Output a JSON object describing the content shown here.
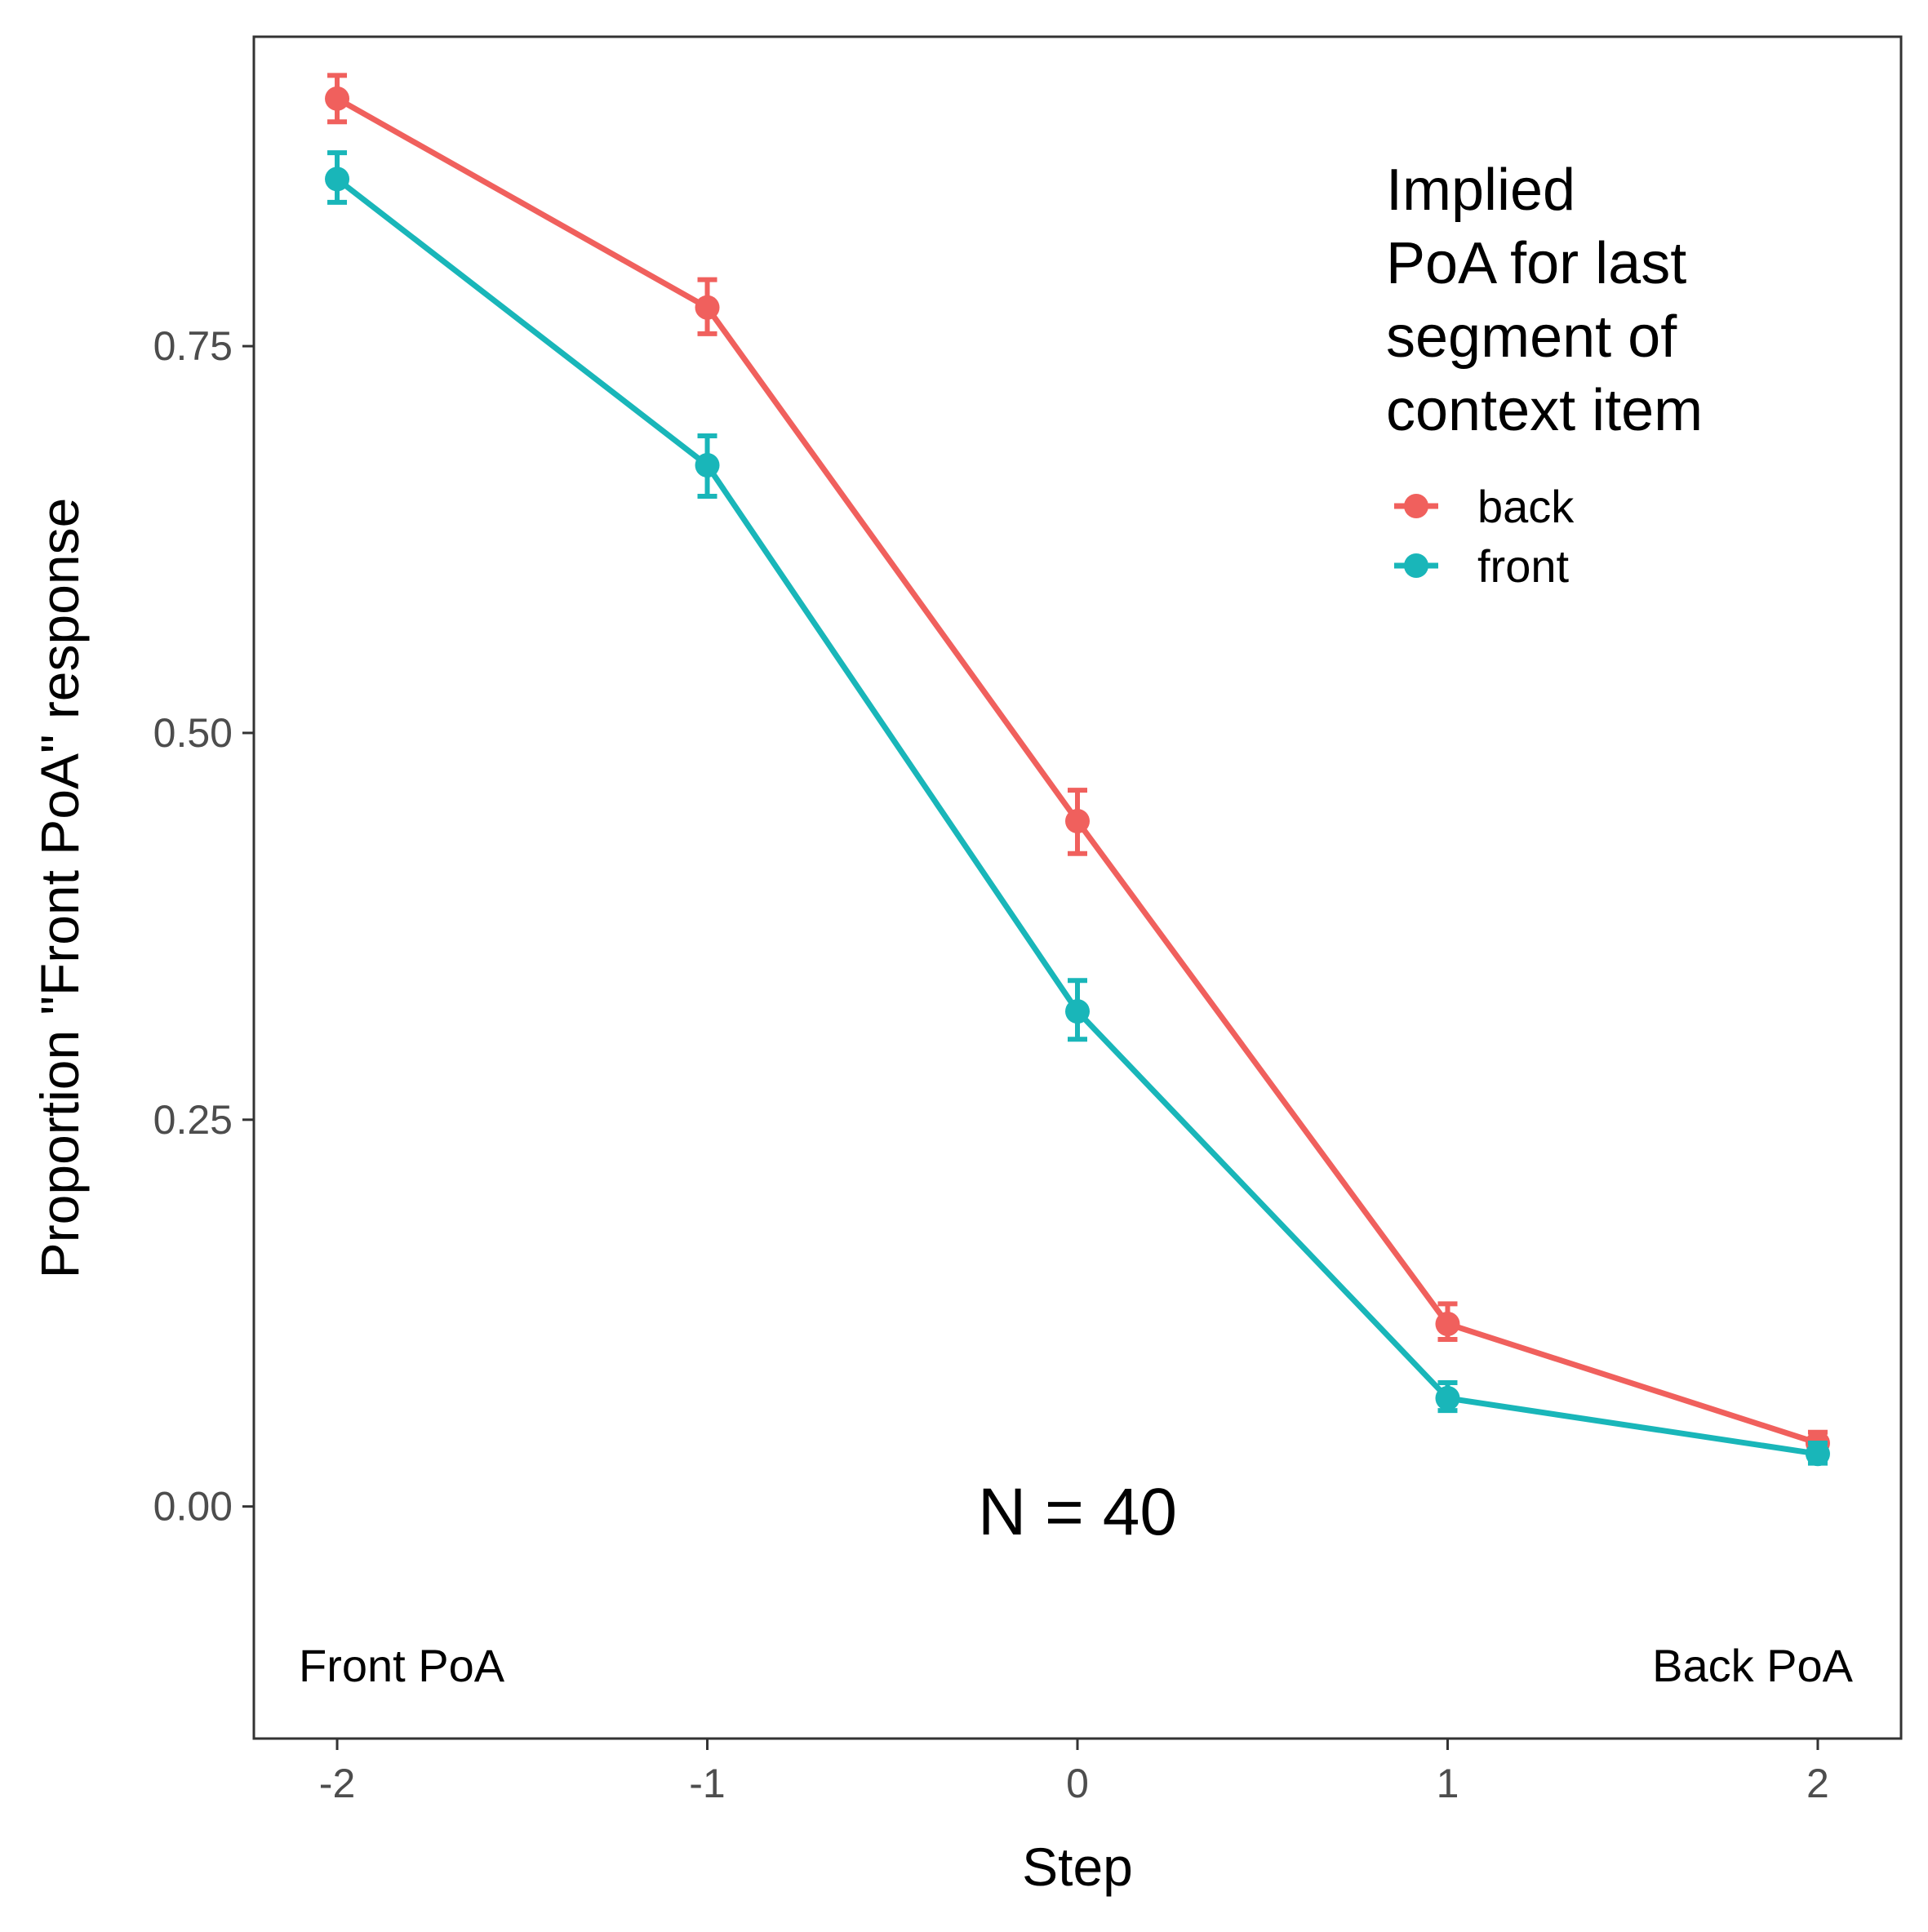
{
  "chart_data": {
    "type": "line",
    "x": [
      -2,
      -1,
      0,
      1,
      2
    ],
    "xlabel": "Step",
    "ylabel": "Proportion \"Front PoA\" response",
    "xlim": [
      -2.225,
      2.225
    ],
    "ylim": [
      -0.15,
      0.95
    ],
    "x_ticks": [
      "-2",
      "-1",
      "0",
      "1",
      "2"
    ],
    "y_ticks": [
      "0.00",
      "0.25",
      "0.50",
      "0.75"
    ],
    "grid": false,
    "legend": {
      "title": [
        "Implied",
        "PoA for last",
        "segment of",
        "context item"
      ],
      "position": "top-right"
    },
    "series": [
      {
        "name": "back",
        "color": "#f0605d",
        "values": [
          0.91,
          0.775,
          0.443,
          0.118,
          0.041
        ],
        "err_low": [
          0.895,
          0.758,
          0.422,
          0.108,
          0.034
        ],
        "err_high": [
          0.925,
          0.793,
          0.463,
          0.131,
          0.048
        ]
      },
      {
        "name": "front",
        "color": "#19b6b9",
        "values": [
          0.858,
          0.673,
          0.32,
          0.07,
          0.034
        ],
        "err_low": [
          0.843,
          0.653,
          0.302,
          0.062,
          0.028
        ],
        "err_high": [
          0.875,
          0.692,
          0.34,
          0.08,
          0.041
        ]
      }
    ],
    "annotations": {
      "n": "N = 40",
      "left": "Front PoA",
      "right": "Back PoA"
    }
  }
}
